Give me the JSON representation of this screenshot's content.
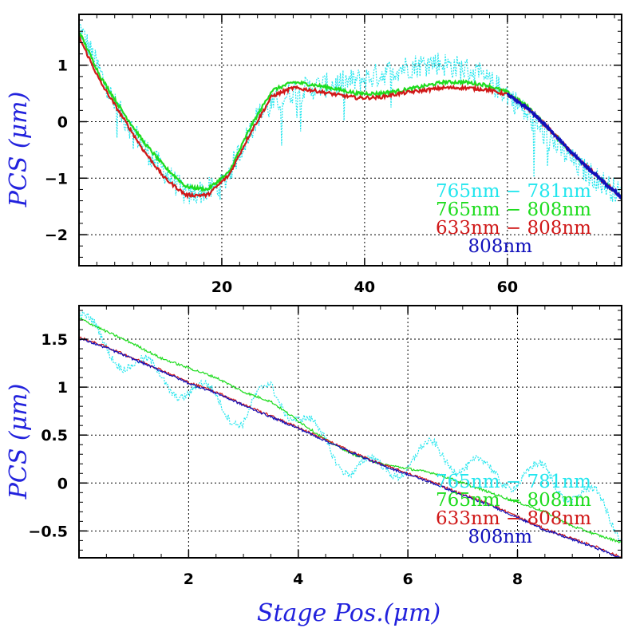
{
  "colors": {
    "axis": "#000000",
    "grid": "#000000",
    "axis_title": "#2222dd",
    "series_cyan": "#22e6ee",
    "series_green": "#1edc1e",
    "series_red": "#d01818",
    "series_blue": "#1010bb"
  },
  "chart_data": [
    {
      "type": "line",
      "panel": "top",
      "xlim": [
        0,
        76
      ],
      "ylim": [
        -2.55,
        1.9
      ],
      "xticks": [
        20,
        40,
        60
      ],
      "xtick_labels": [
        "20",
        "40",
        "60"
      ],
      "yticks": [
        -2,
        -1,
        0,
        1
      ],
      "ytick_labels": [
        "−2",
        "−1",
        "0",
        "1"
      ],
      "ylabel": "PCS (μm)",
      "grid": true,
      "legend_position": "bottom-right",
      "series": [
        {
          "name": "765nm − 781nm",
          "color": "#22e6ee",
          "style": "dotted-noisy",
          "x": [
            0,
            5,
            10,
            15,
            20,
            25,
            30,
            35,
            40,
            45,
            50,
            55,
            60,
            65,
            70,
            76
          ],
          "y": [
            1.7,
            0.3,
            -0.6,
            -1.3,
            -1.15,
            0.1,
            0.55,
            0.65,
            0.75,
            0.95,
            1.05,
            0.9,
            0.5,
            -0.2,
            -0.8,
            -1.3
          ]
        },
        {
          "name": "765nm − 808nm",
          "color": "#1edc1e",
          "style": "solid",
          "x": [
            0,
            3,
            6,
            9,
            12,
            15,
            18,
            21,
            24,
            27,
            30,
            33,
            36,
            39,
            42,
            45,
            48,
            51,
            54,
            57,
            60,
            63,
            66,
            69,
            72,
            76
          ],
          "y": [
            1.6,
            0.8,
            0.2,
            -0.35,
            -0.8,
            -1.15,
            -1.2,
            -0.9,
            -0.1,
            0.55,
            0.7,
            0.65,
            0.58,
            0.5,
            0.5,
            0.55,
            0.62,
            0.7,
            0.7,
            0.65,
            0.52,
            0.25,
            -0.15,
            -0.55,
            -0.9,
            -1.35
          ]
        },
        {
          "name": "633nm − 808nm",
          "color": "#d01818",
          "style": "solid",
          "x": [
            0,
            3,
            6,
            9,
            12,
            15,
            18,
            21,
            24,
            27,
            30,
            33,
            36,
            39,
            42,
            45,
            48,
            51,
            54,
            57,
            60,
            63,
            66,
            69,
            72,
            76
          ],
          "y": [
            1.5,
            0.7,
            0.1,
            -0.5,
            -1.0,
            -1.3,
            -1.3,
            -0.95,
            -0.2,
            0.45,
            0.6,
            0.55,
            0.48,
            0.42,
            0.43,
            0.5,
            0.55,
            0.6,
            0.6,
            0.57,
            0.48,
            0.22,
            -0.15,
            -0.55,
            -0.9,
            -1.35
          ]
        },
        {
          "name": "808nm",
          "color": "#1010bb",
          "style": "solid",
          "x": [
            60,
            63,
            66,
            69,
            72,
            76
          ],
          "y": [
            0.48,
            0.22,
            -0.15,
            -0.55,
            -0.9,
            -1.35
          ]
        }
      ]
    },
    {
      "type": "line",
      "panel": "bottom",
      "xlim": [
        0,
        9.9
      ],
      "ylim": [
        -0.78,
        1.85
      ],
      "xticks": [
        2,
        4,
        6,
        8
      ],
      "xtick_labels": [
        "2",
        "4",
        "6",
        "8"
      ],
      "yticks": [
        -0.5,
        0,
        0.5,
        1,
        1.5
      ],
      "ytick_labels": [
        "−0.5",
        "0",
        "0.5",
        "1",
        "1.5"
      ],
      "xlabel": "Stage Pos.(μm)",
      "ylabel": "PCS (μm)",
      "grid": true,
      "legend_position": "bottom-right",
      "series": [
        {
          "name": "765nm − 781nm",
          "color": "#22e6ee",
          "style": "dotted-oscillating",
          "x": [
            0,
            0.5,
            1,
            1.5,
            2,
            2.5,
            3,
            3.5,
            4,
            4.5,
            5,
            5.5,
            6,
            6.5,
            7,
            7.5,
            8,
            8.5,
            9,
            9.5,
            9.9
          ],
          "y": [
            1.75,
            1.4,
            1.25,
            1.1,
            0.95,
            0.9,
            0.65,
            1.0,
            0.7,
            0.4,
            0.15,
            0.15,
            0.2,
            0.35,
            0.2,
            0.1,
            0.05,
            0.1,
            -0.1,
            -0.2,
            -0.5
          ]
        },
        {
          "name": "765nm − 808nm",
          "color": "#1edc1e",
          "style": "solid-thin",
          "x": [
            0,
            0.5,
            1,
            1.5,
            2,
            2.5,
            3,
            3.5,
            4,
            4.5,
            5,
            5.5,
            6,
            6.5,
            7,
            7.5,
            8,
            8.5,
            9,
            9.5,
            9.9
          ],
          "y": [
            1.72,
            1.58,
            1.45,
            1.3,
            1.2,
            1.1,
            0.95,
            0.85,
            0.65,
            0.45,
            0.3,
            0.2,
            0.15,
            0.1,
            0.0,
            -0.1,
            -0.2,
            -0.3,
            -0.45,
            -0.55,
            -0.62
          ]
        },
        {
          "name": "633nm − 808nm",
          "color": "#d01818",
          "style": "solid-thin",
          "x": [
            0,
            0.5,
            1,
            1.5,
            2,
            2.5,
            3,
            3.5,
            4,
            4.5,
            5,
            5.5,
            6,
            6.5,
            7,
            7.5,
            8,
            8.5,
            9,
            9.5,
            9.9
          ],
          "y": [
            1.52,
            1.42,
            1.3,
            1.18,
            1.05,
            0.95,
            0.82,
            0.7,
            0.58,
            0.45,
            0.32,
            0.2,
            0.1,
            0.0,
            -0.12,
            -0.22,
            -0.35,
            -0.48,
            -0.58,
            -0.68,
            -0.78
          ]
        },
        {
          "name": "808nm",
          "color": "#1010bb",
          "style": "solid-thin",
          "x": [
            0,
            0.5,
            1,
            1.5,
            2,
            2.5,
            3,
            3.5,
            4,
            4.5,
            5,
            5.5,
            6,
            6.5,
            7,
            7.5,
            8,
            8.5,
            9,
            9.5,
            9.9
          ],
          "y": [
            1.51,
            1.41,
            1.29,
            1.17,
            1.04,
            0.94,
            0.81,
            0.69,
            0.57,
            0.44,
            0.31,
            0.19,
            0.09,
            -0.01,
            -0.13,
            -0.23,
            -0.36,
            -0.49,
            -0.59,
            -0.69,
            -0.79
          ]
        }
      ]
    }
  ]
}
